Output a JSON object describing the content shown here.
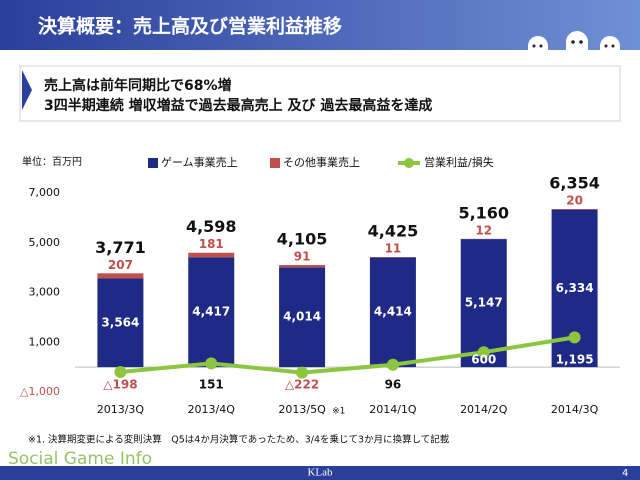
{
  "header": {
    "title": "決算概要：売上高及び営業利益推移"
  },
  "summary": [
    "売上高は前年同期比で68%増",
    "3四半期連続 増収増益で過去最高売上 及び 過去最高益を達成"
  ],
  "chart_data": {
    "type": "bar",
    "unit_label": "単位：百万円",
    "categories": [
      "2013/3Q",
      "2013/4Q",
      "2013/5Q",
      "2014/1Q",
      "2014/2Q",
      "2014/3Q"
    ],
    "category_note": {
      "index": 2,
      "label": "※1"
    },
    "series": [
      {
        "name": "ゲーム事業売上",
        "color": "#1f2a86",
        "values": [
          3564,
          4417,
          4014,
          4414,
          5147,
          6334
        ],
        "value_labels": [
          "3,564",
          "4,417",
          "4,014",
          "4,414",
          "5,147",
          "6,334"
        ]
      },
      {
        "name": "その他事業売上",
        "color": "#c0504d",
        "values": [
          207,
          181,
          91,
          11,
          12,
          20
        ]
      },
      {
        "name": "営業利益/損失",
        "type": "line",
        "color": "#8cc63f",
        "values": [
          -198,
          151,
          -222,
          96,
          600,
          1195
        ],
        "value_labels": [
          "△198",
          "151",
          "△222",
          "96",
          "600",
          "1,195"
        ]
      }
    ],
    "total_labels": [
      "3,771",
      "4,598",
      "4,105",
      "4,425",
      "5,160",
      "6,354"
    ],
    "ylim": [
      -1000,
      7000
    ],
    "yticks": [
      {
        "value": -1000,
        "label": "△1,000"
      },
      {
        "value": 1000,
        "label": "1,000"
      },
      {
        "value": 3000,
        "label": "3,000"
      },
      {
        "value": 5000,
        "label": "5,000"
      },
      {
        "value": 7000,
        "label": "7,000"
      }
    ],
    "grid": false
  },
  "footnote": "※1. 決算期変更による変則決算　Q5は4か月決算であったため、3/4を乗じて3か月に換算して記載",
  "watermark": "Social Game Info",
  "footer": {
    "brand": "KLab",
    "page": "4"
  }
}
